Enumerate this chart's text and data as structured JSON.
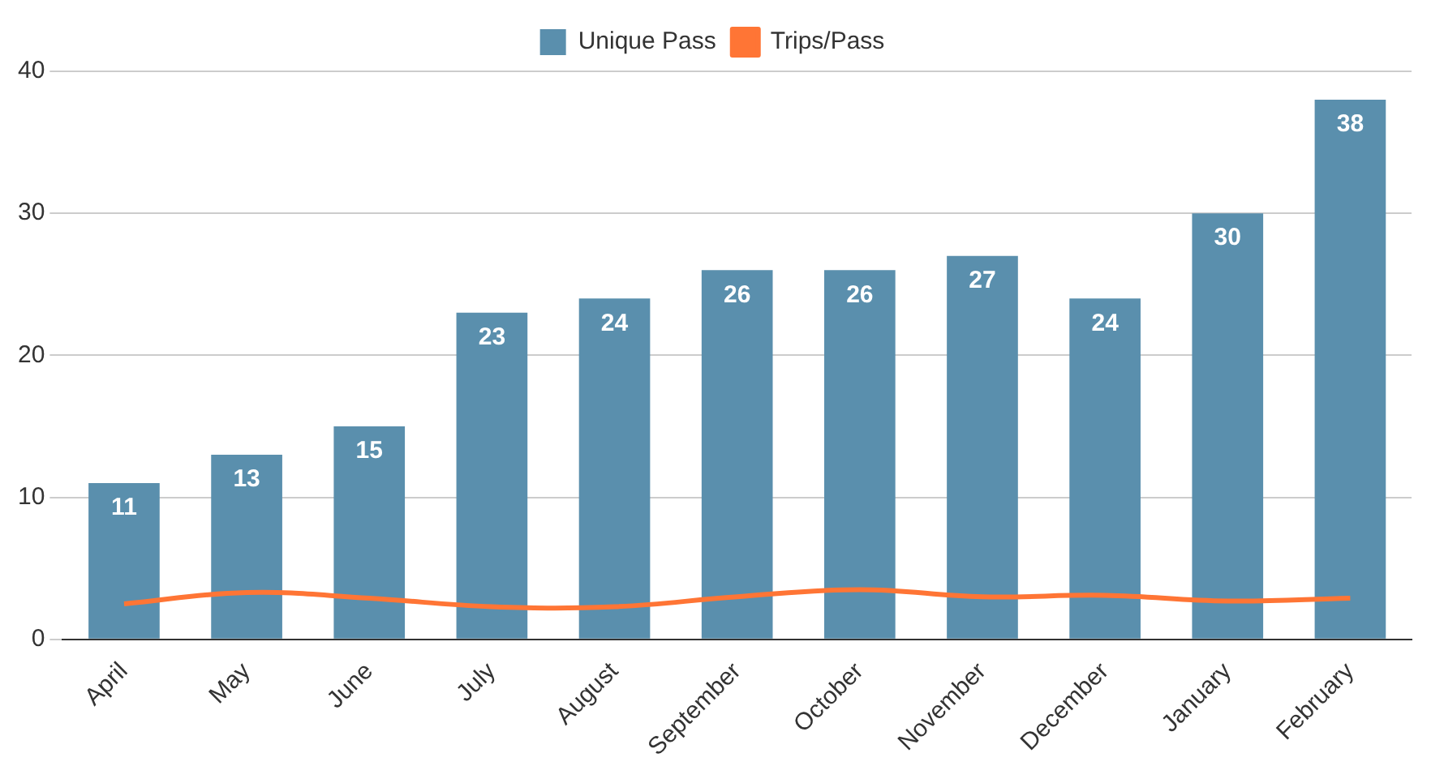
{
  "chart_data": {
    "type": "bar",
    "categories": [
      "April",
      "May",
      "June",
      "July",
      "August",
      "September",
      "October",
      "November",
      "December",
      "January",
      "February"
    ],
    "series": [
      {
        "name": "Unique Pass",
        "color": "#5a8fad",
        "values": [
          11,
          13,
          15,
          23,
          24,
          26,
          26,
          27,
          24,
          30,
          38
        ],
        "value_labels": [
          "11",
          "13",
          "15",
          "23",
          "24",
          "26",
          "26",
          "27",
          "24",
          "30",
          "38"
        ]
      },
      {
        "name": "Trips/Pass",
        "type": "line",
        "color": "#ff7535",
        "values": [
          2.5,
          3.3,
          2.9,
          2.3,
          2.3,
          3.0,
          3.5,
          3.0,
          3.1,
          2.7,
          2.9
        ]
      }
    ],
    "ylim": [
      0,
      40
    ],
    "yticks": [
      0,
      10,
      20,
      30,
      40
    ],
    "grid": "y",
    "legend": "top",
    "marker": "none"
  }
}
